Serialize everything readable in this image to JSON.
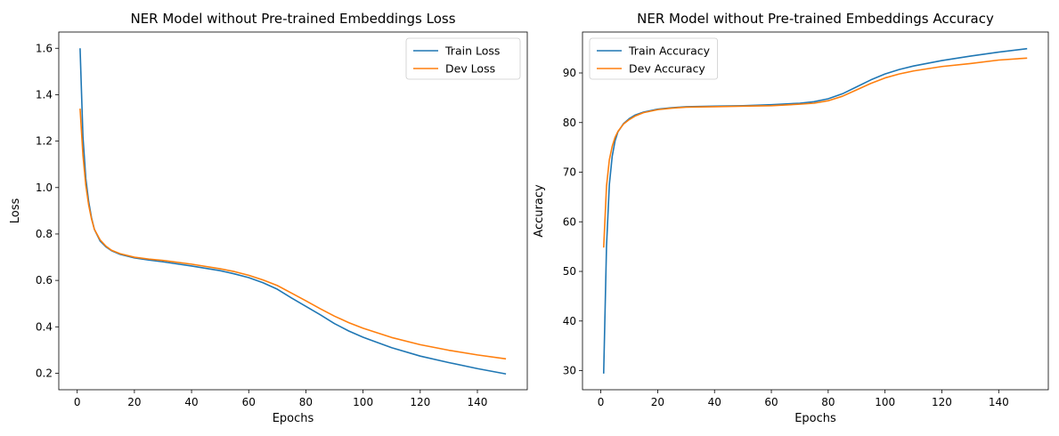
{
  "chart_data": [
    {
      "type": "line",
      "title": "NER Model without Pre-trained Embeddings Loss",
      "xlabel": "Epochs",
      "ylabel": "Loss",
      "xlim": [
        -6.45,
        157.45
      ],
      "ylim": [
        0.129,
        1.67
      ],
      "xticks": [
        0,
        20,
        40,
        60,
        80,
        100,
        120,
        140
      ],
      "yticks": [
        0.2,
        0.4,
        0.6,
        0.8,
        1.0,
        1.2,
        1.4,
        1.6
      ],
      "ytick_labels": [
        "0.2",
        "0.4",
        "0.6",
        "0.8",
        "1.0",
        "1.2",
        "1.4",
        "1.6"
      ],
      "legend_position": "upper right",
      "series": [
        {
          "name": "Train Loss",
          "color": "#1f77b4",
          "x": [
            1,
            2,
            3,
            4,
            5,
            6,
            8,
            10,
            12,
            15,
            20,
            25,
            30,
            40,
            50,
            55,
            60,
            65,
            70,
            75,
            80,
            85,
            90,
            95,
            100,
            110,
            120,
            130,
            140,
            150
          ],
          "y": [
            1.6,
            1.22,
            1.04,
            0.94,
            0.87,
            0.82,
            0.77,
            0.745,
            0.728,
            0.712,
            0.697,
            0.688,
            0.68,
            0.662,
            0.642,
            0.628,
            0.612,
            0.59,
            0.562,
            0.524,
            0.488,
            0.452,
            0.414,
            0.382,
            0.355,
            0.31,
            0.274,
            0.246,
            0.22,
            0.197
          ]
        },
        {
          "name": "Dev Loss",
          "color": "#ff7f0e",
          "x": [
            1,
            2,
            3,
            4,
            5,
            6,
            8,
            10,
            12,
            15,
            20,
            25,
            30,
            40,
            50,
            55,
            60,
            65,
            70,
            75,
            80,
            85,
            90,
            95,
            100,
            110,
            120,
            130,
            140,
            150
          ],
          "y": [
            1.34,
            1.14,
            1.01,
            0.925,
            0.865,
            0.82,
            0.775,
            0.748,
            0.73,
            0.715,
            0.7,
            0.692,
            0.686,
            0.67,
            0.65,
            0.638,
            0.622,
            0.602,
            0.578,
            0.545,
            0.512,
            0.478,
            0.446,
            0.418,
            0.394,
            0.354,
            0.323,
            0.299,
            0.279,
            0.262
          ]
        }
      ]
    },
    {
      "type": "line",
      "title": "NER Model without Pre-trained Embeddings Accuracy",
      "xlabel": "Epochs",
      "ylabel": "Accuracy",
      "xlim": [
        -6.45,
        157.45
      ],
      "ylim": [
        26.15,
        98.25
      ],
      "xticks": [
        0,
        20,
        40,
        60,
        80,
        100,
        120,
        140
      ],
      "yticks": [
        30,
        40,
        50,
        60,
        70,
        80,
        90
      ],
      "ytick_labels": [
        "30",
        "40",
        "50",
        "60",
        "70",
        "80",
        "90"
      ],
      "legend_position": "upper left",
      "series": [
        {
          "name": "Train Accuracy",
          "color": "#1f77b4",
          "x": [
            1,
            2,
            3,
            4,
            5,
            6,
            8,
            10,
            12,
            15,
            20,
            25,
            30,
            40,
            50,
            60,
            70,
            75,
            80,
            85,
            90,
            95,
            100,
            105,
            110,
            120,
            130,
            140,
            150
          ],
          "y": [
            29.4,
            55.0,
            67.5,
            73.2,
            76.3,
            78.1,
            79.8,
            80.8,
            81.5,
            82.1,
            82.7,
            83.0,
            83.2,
            83.3,
            83.4,
            83.6,
            83.9,
            84.2,
            84.8,
            85.8,
            87.2,
            88.6,
            89.8,
            90.7,
            91.4,
            92.5,
            93.4,
            94.2,
            94.9
          ]
        },
        {
          "name": "Dev Accuracy",
          "color": "#ff7f0e",
          "x": [
            1,
            2,
            3,
            4,
            5,
            6,
            8,
            10,
            12,
            15,
            20,
            25,
            30,
            40,
            50,
            60,
            70,
            75,
            80,
            85,
            90,
            95,
            100,
            105,
            110,
            120,
            130,
            140,
            150
          ],
          "y": [
            54.8,
            67.2,
            72.5,
            75.2,
            77.0,
            78.2,
            79.7,
            80.6,
            81.3,
            82.0,
            82.6,
            82.9,
            83.1,
            83.2,
            83.3,
            83.4,
            83.7,
            83.9,
            84.4,
            85.3,
            86.6,
            87.9,
            89.0,
            89.8,
            90.4,
            91.3,
            91.9,
            92.6,
            93.0
          ]
        }
      ]
    }
  ]
}
